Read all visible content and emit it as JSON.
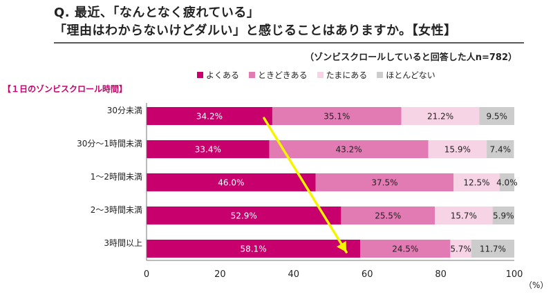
{
  "header": {
    "line1": "Q. 最近、「なんとなく疲れている」",
    "line2": "「理由はわからないけどダルい」と感じることはありますか。【女性】",
    "note": "（ゾンビスクロールしていると回答した人n=782）"
  },
  "chart_data": {
    "type": "bar",
    "orientation": "horizontal",
    "stacked": true,
    "axis_title": "【１日のゾンビスクロール時間】",
    "categories": [
      "30分未満",
      "30分〜1時間未満",
      "1〜2時間未満",
      "2〜3時間未満",
      "3時間以上"
    ],
    "series": [
      {
        "name": "よくある",
        "color": "#c8006e",
        "values": [
          34.2,
          33.4,
          46.0,
          52.9,
          58.1
        ]
      },
      {
        "name": "ときどきある",
        "color": "#e27bb4",
        "values": [
          35.1,
          43.2,
          37.5,
          25.5,
          24.5
        ]
      },
      {
        "name": "たまにある",
        "color": "#f7d3e6",
        "values": [
          21.2,
          15.9,
          12.5,
          15.7,
          5.7
        ]
      },
      {
        "name": "ほとんどない",
        "color": "#cccccc",
        "values": [
          9.5,
          7.4,
          4.0,
          5.9,
          11.7
        ]
      }
    ],
    "value_suffix": "%",
    "xlim": [
      0,
      100
    ],
    "xticks": [
      0,
      20,
      40,
      60,
      80,
      100
    ],
    "unit": "（%）",
    "legend": "top",
    "grid": false,
    "annotation": {
      "type": "arrow",
      "color": "#f5f500"
    }
  }
}
